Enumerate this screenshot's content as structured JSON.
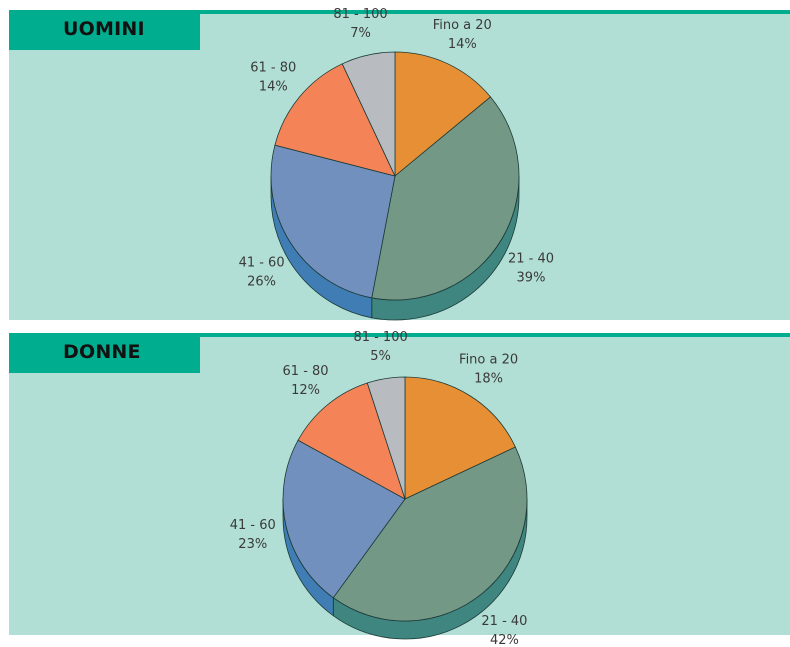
{
  "colors": {
    "panel_bg": "#b2dfd5",
    "accent": "#00ad8e",
    "slices": [
      "#e78f34",
      "#739886",
      "#7190bd",
      "#f48457",
      "#b8bcc1"
    ],
    "slices_side": [
      "#b9702a",
      "#3f8580",
      "#3f7db4",
      "#c66843",
      "#8d9196"
    ]
  },
  "chart_data": [
    {
      "type": "pie",
      "title": "UOMINI",
      "categories": [
        "Fino a 20",
        "21 - 40",
        "41 - 60",
        "61 - 80",
        "81 - 100"
      ],
      "values": [
        14,
        39,
        26,
        14,
        7
      ],
      "labels": [
        "14%",
        "39%",
        "26%",
        "14%",
        "7%"
      ]
    },
    {
      "type": "pie",
      "title": "DONNE",
      "categories": [
        "Fino a 20",
        "21 - 40",
        "41 - 60",
        "61 - 80",
        "81 - 100"
      ],
      "values": [
        18,
        42,
        23,
        12,
        5
      ],
      "labels": [
        "18%",
        "42%",
        "23%",
        "12%",
        "5%"
      ]
    }
  ]
}
